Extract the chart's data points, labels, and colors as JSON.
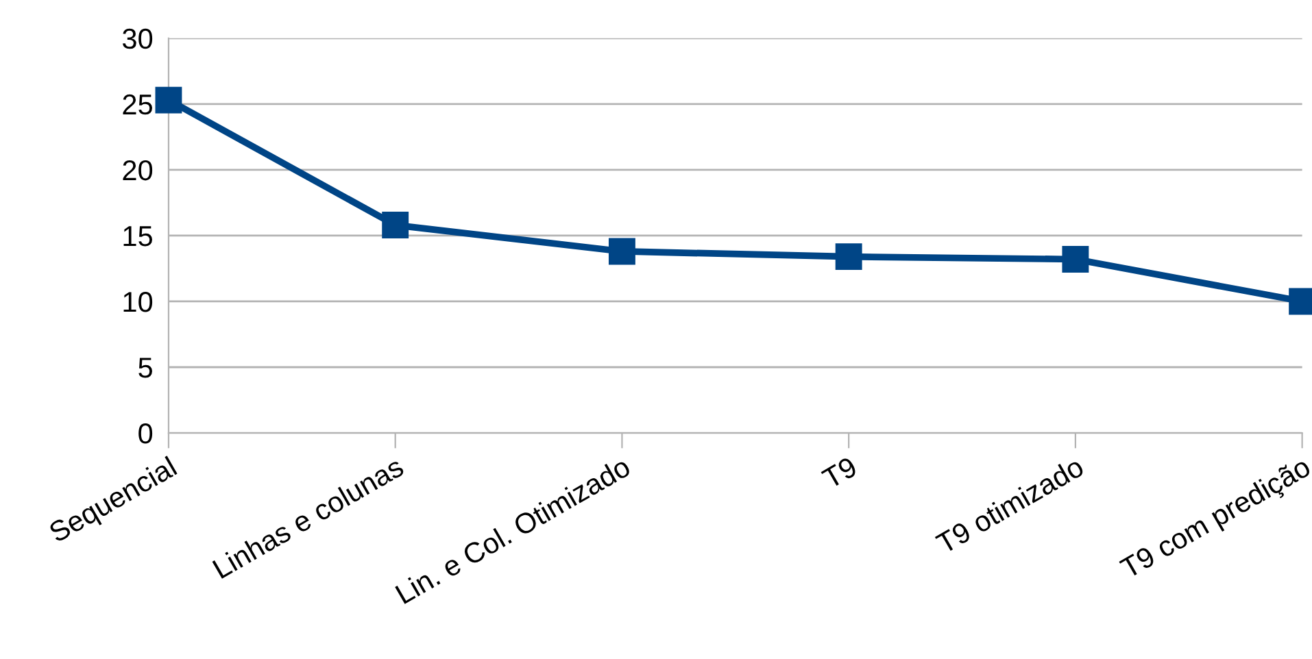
{
  "chart_data": {
    "type": "line",
    "categories": [
      "Sequencial",
      "Linhas e colunas",
      "Lin. e Col. Otimizado",
      "T9",
      "T9 otimizado",
      "T9 com predição"
    ],
    "series": [
      {
        "color": "#004586",
        "values": [
          25.3,
          15.8,
          13.8,
          13.4,
          13.2,
          10.0
        ]
      }
    ],
    "ylim": [
      0,
      30
    ],
    "yticks": [
      0,
      5,
      10,
      15,
      20,
      25,
      30
    ],
    "grid": "y",
    "legend": false,
    "marker": "square",
    "line_style": "solid"
  }
}
